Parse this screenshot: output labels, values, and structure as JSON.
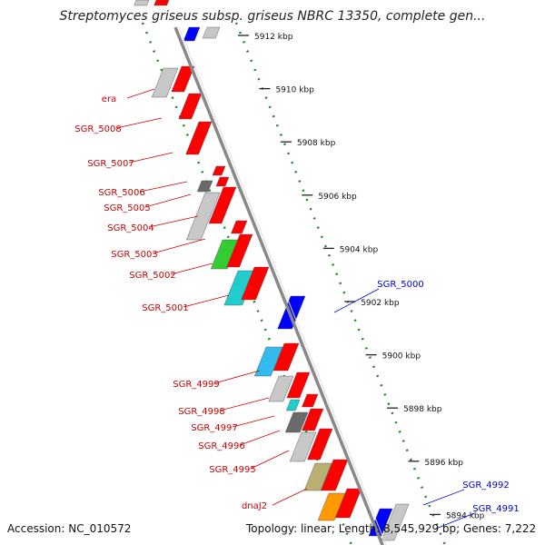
{
  "header": {
    "title": "Streptomyces griseus subsp. griseus NBRC 13350, complete gen..."
  },
  "footer": {
    "accession": "Accession: NC_010572",
    "summary": "Topology: linear; Length: 8,545,929 bp; Genes: 7,222"
  },
  "scale": {
    "ticks": [
      {
        "label": "5912 kbp",
        "kbp": 5912
      },
      {
        "label": "5910 kbp",
        "kbp": 5910
      },
      {
        "label": "5908 kbp",
        "kbp": 5908
      },
      {
        "label": "5906 kbp",
        "kbp": 5906
      },
      {
        "label": "5904 kbp",
        "kbp": 5904
      },
      {
        "label": "5902 kbp",
        "kbp": 5902
      },
      {
        "label": "5900 kbp",
        "kbp": 5900
      },
      {
        "label": "5898 kbp",
        "kbp": 5898
      },
      {
        "label": "5896 kbp",
        "kbp": 5896
      },
      {
        "label": "5894 kbp",
        "kbp": 5894
      }
    ]
  },
  "genes_left": [
    {
      "label": "era",
      "color": "#cc0000"
    },
    {
      "label": "SGR_5008",
      "color": "#cc0000"
    },
    {
      "label": "SGR_5007",
      "color": "#cc0000"
    },
    {
      "label": "SGR_5006",
      "color": "#cc0000"
    },
    {
      "label": "SGR_5005",
      "color": "#cc0000"
    },
    {
      "label": "SGR_5004",
      "color": "#cc0000"
    },
    {
      "label": "SGR_5003",
      "color": "#cc0000"
    },
    {
      "label": "SGR_5002",
      "color": "#cc0000"
    },
    {
      "label": "SGR_5001",
      "color": "#cc0000"
    },
    {
      "label": "SGR_4999",
      "color": "#cc0000"
    },
    {
      "label": "SGR_4998",
      "color": "#cc0000"
    },
    {
      "label": "SGR_4997",
      "color": "#cc0000"
    },
    {
      "label": "SGR_4996",
      "color": "#cc0000"
    },
    {
      "label": "SGR_4995",
      "color": "#cc0000"
    },
    {
      "label": "dnaJ2",
      "color": "#cc0000"
    }
  ],
  "genes_right": [
    {
      "label": "SGR_5000",
      "color": "#0000cc"
    },
    {
      "label": "SGR_4992",
      "color": "#0000cc"
    },
    {
      "label": "SGR_4991",
      "color": "#0000cc"
    }
  ],
  "colors": {
    "forward_gene": "#ff0000",
    "reverse_gene": "#0000ff",
    "rna_gray": "#c8c8c8",
    "rna_dark": "#6a6a6a",
    "rna_green": "#33cc33",
    "rna_cyan": "#22cccc",
    "rna_sky": "#33bbee",
    "rna_olive": "#b8b070",
    "rna_orange": "#ff9900",
    "backbone": "#888888",
    "dotted_track": "#228822"
  }
}
